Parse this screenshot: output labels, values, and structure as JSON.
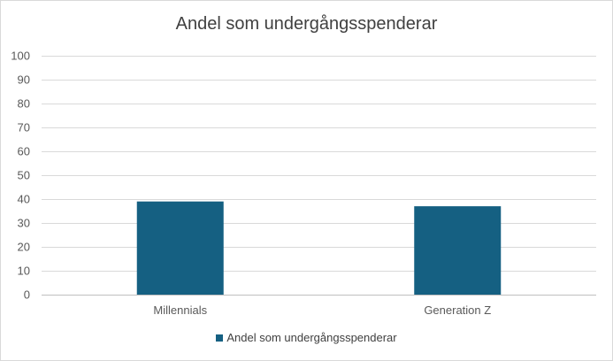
{
  "chart_data": {
    "type": "bar",
    "title": "Andel som undergångsspenderar",
    "categories": [
      "Millennials",
      "Generation Z"
    ],
    "series": [
      {
        "name": "Andel som undergångsspenderar",
        "values": [
          39,
          37
        ],
        "color": "#156082"
      }
    ],
    "ylim": [
      0,
      100
    ],
    "yticks": [
      0,
      10,
      20,
      30,
      40,
      50,
      60,
      70,
      80,
      90,
      100
    ],
    "grid": true,
    "legend_position": "bottom"
  }
}
